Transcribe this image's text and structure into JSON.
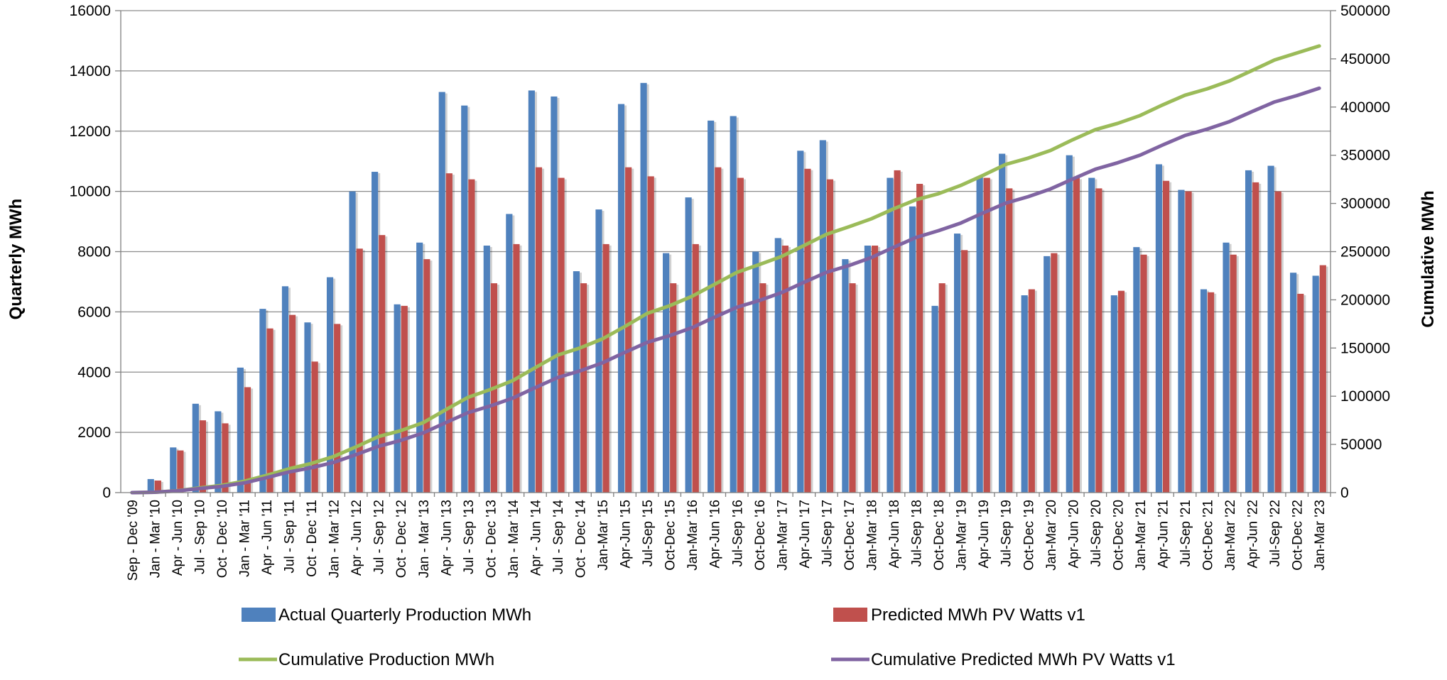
{
  "chart_data": {
    "type": "bar",
    "title": "",
    "ylabel": "Quarterly MWh",
    "y2label": "Cumulative MWh",
    "ylim": [
      0,
      16000
    ],
    "y2lim": [
      0,
      500000
    ],
    "yticks": [
      0,
      2000,
      4000,
      6000,
      8000,
      10000,
      12000,
      14000,
      16000
    ],
    "y2ticks": [
      0,
      50000,
      100000,
      150000,
      200000,
      250000,
      300000,
      350000,
      400000,
      450000,
      500000
    ],
    "grid": true,
    "legend": "bottom",
    "categories": [
      "Sep - Dec '09",
      "Jan - Mar '10",
      "Apr - Jun '10",
      "Jul - Sep '10",
      "Oct - Dec '10",
      "Jan - Mar '11",
      "Apr - Jun '11",
      "Jul - Sep '11",
      "Oct - Dec '11",
      "Jan - Mar '12",
      "Apr - Jun '12",
      "Jul - Sep '12",
      "Oct - Dec '12",
      "Jan - Mar '13",
      "Apr - Jun '13",
      "Jul - Sep '13",
      "Oct - Dec '13",
      "Jan - Mar '14",
      "Apr - Jun '14",
      "Jul - Sep '14",
      "Oct - Dec '14",
      "Jan-Mar '15",
      "Apr-Jun '15",
      "Jul-Sep '15",
      "Oct-Dec '15",
      "Jan-Mar '16",
      "Apr-Jun '16",
      "Jul-Sep '16",
      "Oct-Dec '16",
      "Jan-Mar '17",
      "Apr-Jun '17",
      "Jul-Sep '17",
      "Oct-Dec '17",
      "Jan-Mar '18",
      "Apr-Jun '18",
      "Jul-Sep '18",
      "Oct-Dec '18",
      "Jan-Mar '19",
      "Apr-Jun '19",
      "Jul-Sep '19",
      "Oct-Dec '19",
      "Jan-Mar '20",
      "Apr-Jun '20",
      "Jul-Sep '20",
      "Oct-Dec '20",
      "Jan-Mar '21",
      "Apr-Jun '21",
      "Jul-Sep '21",
      "Oct-Dec '21",
      "Jan-Mar '22",
      "Apr-Jun '22",
      "Jul-Sep '22",
      "Oct-Dec '22",
      "Jan-Mar '23"
    ],
    "series": [
      {
        "name": "Actual Quarterly Production MWh",
        "kind": "bar",
        "axis": "left",
        "color": "#4f81bd",
        "values": [
          0,
          450,
          1500,
          2950,
          2700,
          4150,
          6100,
          6850,
          5650,
          7150,
          10000,
          10650,
          6250,
          8300,
          13300,
          12850,
          8200,
          9250,
          13350,
          13150,
          7350,
          9400,
          12900,
          13600,
          7950,
          9800,
          12350,
          12500,
          8000,
          8450,
          11350,
          11700,
          7750,
          8200,
          10450,
          9500,
          6200,
          8600,
          10500,
          11250,
          6550,
          7850,
          11200,
          10450,
          6550,
          8150,
          10900,
          10050,
          6750,
          8300,
          10700,
          10850,
          7300,
          7200
        ]
      },
      {
        "name": "Predicted MWh PV Watts v1",
        "kind": "bar",
        "axis": "left",
        "color": "#c0504d",
        "values": [
          0,
          400,
          1400,
          2400,
          2300,
          3500,
          5450,
          5900,
          4350,
          5600,
          8100,
          8550,
          6200,
          7750,
          10600,
          10400,
          6950,
          8250,
          10800,
          10450,
          6950,
          8250,
          10800,
          10500,
          6950,
          8250,
          10800,
          10450,
          6950,
          8200,
          10750,
          10400,
          6950,
          8200,
          10700,
          10250,
          6950,
          8050,
          10450,
          10100,
          6750,
          7950,
          10450,
          10100,
          6700,
          7900,
          10350,
          10000,
          6650,
          7900,
          10300,
          10000,
          6600,
          7550
        ]
      },
      {
        "name": "Cumulative Production MWh",
        "kind": "line",
        "axis": "right",
        "color": "#9bbb59",
        "values": [
          0,
          400,
          1900,
          4800,
          7500,
          11700,
          17800,
          24600,
          30300,
          37400,
          47400,
          58100,
          64300,
          72600,
          85900,
          98800,
          107000,
          116200,
          129600,
          142700,
          150100,
          159400,
          172300,
          185900,
          193900,
          203700,
          216000,
          228500,
          236500,
          245000,
          256300,
          268000,
          275800,
          284000,
          294400,
          303900,
          310100,
          318700,
          329200,
          340500,
          347000,
          354900,
          366100,
          376500,
          383100,
          391200,
          402100,
          412200,
          418900,
          427200,
          437900,
          448800,
          456100,
          463300
        ]
      },
      {
        "name": "Cumulative Predicted MWh PV Watts v1",
        "kind": "line",
        "axis": "right",
        "color": "#8064a2",
        "values": [
          0,
          400,
          1800,
          4200,
          6500,
          10000,
          15500,
          21400,
          25700,
          31300,
          39400,
          48000,
          54200,
          61900,
          72500,
          82900,
          89900,
          98100,
          108900,
          119400,
          126300,
          134600,
          145400,
          155900,
          162800,
          171100,
          181900,
          192300,
          199300,
          207500,
          218200,
          228600,
          235600,
          243800,
          254500,
          264700,
          271700,
          279700,
          290200,
          300300,
          307000,
          315000,
          325400,
          335500,
          342200,
          350100,
          360500,
          370500,
          377100,
          385000,
          395300,
          405300,
          411900,
          419500
        ]
      }
    ]
  }
}
